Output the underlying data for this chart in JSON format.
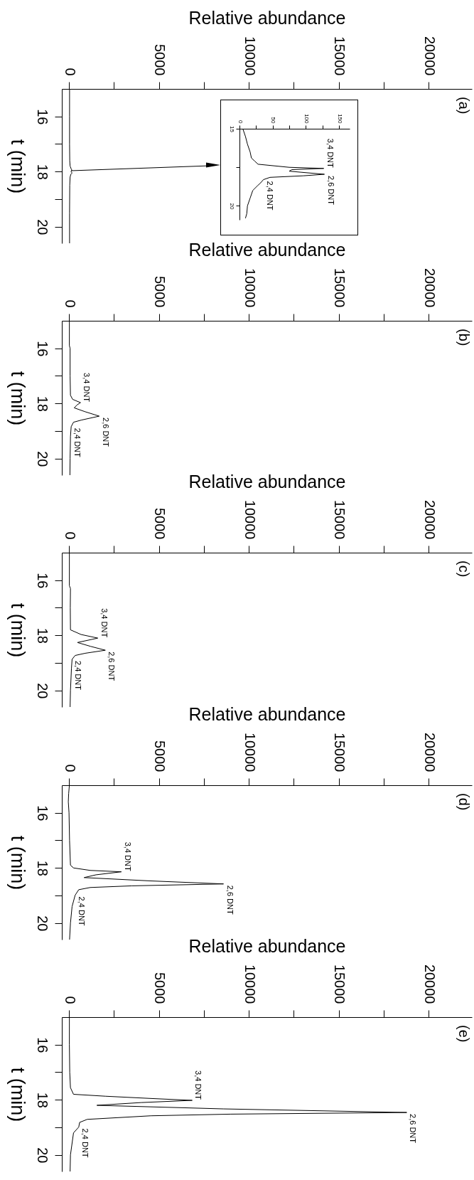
{
  "chart_data": [
    {
      "type": "line",
      "title": "(a)",
      "xlabel": "Relative abundance",
      "ylabel": "t (min)",
      "xlim": [
        -400,
        22400
      ],
      "ylim": [
        20.6,
        15
      ],
      "xticks": [
        0,
        {
          "value": 2500,
          "label": null
        },
        5000,
        {
          "value": 7500,
          "label": null
        },
        10000,
        {
          "value": 12500,
          "label": null
        },
        15000,
        {
          "value": 17500,
          "label": null
        },
        20000
      ],
      "yticks": [
        16,
        {
          "value": 17,
          "label": null
        },
        18,
        {
          "value": 19,
          "label": null
        },
        20
      ],
      "series": [
        {
          "color": "#000000",
          "x": [
            30,
            30,
            30,
            40,
            60,
            120,
            160,
            110,
            170,
            100,
            60,
            40,
            30,
            30
          ],
          "values": [
            15.0,
            16.0,
            17.0,
            17.6,
            17.8,
            17.9,
            17.95,
            18.0,
            18.05,
            18.1,
            18.2,
            18.5,
            19.5,
            20.6
          ]
        }
      ]
    },
    {
      "type": "line",
      "xlim": [
        0,
        166
      ],
      "ylim": [
        20.9,
        15
      ],
      "xticks": [
        0,
        {
          "value": 25,
          "label": null
        },
        50,
        {
          "value": 75,
          "label": null
        },
        100,
        {
          "value": 125,
          "label": null
        },
        150
      ],
      "yticks": [
        15,
        {
          "value": 17.5,
          "label": null
        },
        20
      ],
      "series": [
        {
          "color": "#000000",
          "x": [
            5,
            9,
            12,
            16,
            18,
            23,
            28,
            75,
            127,
            79,
            75,
            93,
            128,
            96,
            46,
            36,
            32,
            27,
            20,
            16,
            12,
            11,
            9
          ],
          "values": [
            15.0,
            15.5,
            16.0,
            16.5,
            16.9,
            17.1,
            17.3,
            17.5,
            17.57,
            17.65,
            17.75,
            17.82,
            17.95,
            18.05,
            18.15,
            18.3,
            18.5,
            18.7,
            19.0,
            19.5,
            20.0,
            20.5,
            20.8
          ]
        }
      ],
      "annotations": [
        {
          "text": "3,4 DNT",
          "x": 127,
          "y": 17.57
        },
        {
          "text": "2,6 DNT",
          "x": 128,
          "y": 17.95
        },
        {
          "text": "2,4 DNT",
          "x": 36,
          "y": 18.3
        }
      ]
    },
    {
      "type": "line",
      "title": "(b)",
      "xlabel": "Relative abundance",
      "ylabel": "t (min)",
      "xlim": [
        -400,
        22400
      ],
      "ylim": [
        20.6,
        15
      ],
      "xticks": [
        0,
        {
          "value": 2500,
          "label": null
        },
        5000,
        {
          "value": 7500,
          "label": null
        },
        10000,
        {
          "value": 12500,
          "label": null
        },
        15000,
        {
          "value": 17500,
          "label": null
        },
        20000
      ],
      "yticks": [
        16,
        {
          "value": 17,
          "label": null
        },
        18,
        {
          "value": 19,
          "label": null
        },
        20
      ],
      "series": [
        {
          "color": "#000000",
          "x": [
            20,
            20,
            60,
            60,
            80,
            200,
            640,
            450,
            290,
            900,
            1680,
            700,
            250,
            120,
            80,
            60,
            50
          ],
          "values": [
            15.0,
            15.9,
            16.0,
            17.0,
            17.7,
            17.85,
            17.97,
            18.05,
            18.16,
            18.3,
            18.46,
            18.6,
            18.68,
            18.84,
            19.2,
            20.0,
            20.6
          ]
        }
      ],
      "annotations": [
        {
          "text": "3,4 DNT",
          "x": 640,
          "y": 17.97
        },
        {
          "text": "2,6 DNT",
          "x": 1680,
          "y": 18.46
        },
        {
          "text": "2,4 DNT",
          "x": 120,
          "y": 18.84
        }
      ]
    },
    {
      "type": "line",
      "title": "(c)",
      "xlabel": "Relative abundance",
      "ylabel": "t (min)",
      "xlim": [
        -400,
        22400
      ],
      "ylim": [
        20.6,
        15
      ],
      "xticks": [
        0,
        {
          "value": 2500,
          "label": null
        },
        5000,
        {
          "value": 7500,
          "label": null
        },
        10000,
        {
          "value": 12500,
          "label": null
        },
        15000,
        {
          "value": 17500,
          "label": null
        },
        20000
      ],
      "yticks": [
        16,
        {
          "value": 17,
          "label": null
        },
        18,
        {
          "value": 19,
          "label": null
        },
        20
      ],
      "series": [
        {
          "color": "#000000",
          "x": [
            20,
            20,
            80,
            70,
            80,
            670,
            1600,
            470,
            1200,
            2020,
            900,
            340,
            170,
            135,
            80,
            60
          ],
          "values": [
            15.0,
            16.2,
            16.3,
            17.0,
            17.8,
            17.97,
            18.1,
            18.26,
            18.4,
            18.54,
            18.65,
            18.73,
            18.87,
            19.2,
            20.0,
            20.6
          ]
        }
      ],
      "annotations": [
        {
          "text": "3,4 DNT",
          "x": 1600,
          "y": 18.1
        },
        {
          "text": "2,6 DNT",
          "x": 2020,
          "y": 18.54
        },
        {
          "text": "2,4 DNT",
          "x": 170,
          "y": 18.87
        }
      ]
    },
    {
      "type": "line",
      "title": "(d)",
      "xlabel": "Relative abundance",
      "ylabel": "t (min)",
      "xlim": [
        -400,
        22400
      ],
      "ylim": [
        20.6,
        15
      ],
      "xticks": [
        0,
        {
          "value": 2500,
          "label": null
        },
        5000,
        {
          "value": 7500,
          "label": null
        },
        10000,
        {
          "value": 12500,
          "label": null
        },
        15000,
        {
          "value": 17500,
          "label": null
        },
        20000
      ],
      "yticks": [
        16,
        {
          "value": 17,
          "label": null
        },
        18,
        {
          "value": 19,
          "label": null
        },
        20
      ],
      "series": [
        {
          "color": "#000000",
          "x": [
            20,
            -20,
            -40,
            0,
            30,
            80,
            250,
            1180,
            2910,
            1500,
            840,
            4500,
            8590,
            3500,
            1180,
            540,
            340,
            170,
            80,
            30
          ],
          "values": [
            15.0,
            15.3,
            15.6,
            16.0,
            17.0,
            17.9,
            18.0,
            18.09,
            18.14,
            18.25,
            18.35,
            18.47,
            18.58,
            18.65,
            18.71,
            18.79,
            18.99,
            19.4,
            20.0,
            20.6
          ]
        }
      ],
      "annotations": [
        {
          "text": "3,4 DNT",
          "x": 2910,
          "y": 18.14
        },
        {
          "text": "2,6 DNT",
          "x": 8590,
          "y": 18.58
        },
        {
          "text": "2,4 DNT",
          "x": 340,
          "y": 18.99
        }
      ]
    },
    {
      "type": "line",
      "title": "(e)",
      "xlabel": "Relative abundance",
      "ylabel": "t (min)",
      "xlim": [
        -400,
        22400
      ],
      "ylim": [
        20.6,
        15
      ],
      "xticks": [
        0,
        {
          "value": 2500,
          "label": null
        },
        5000,
        {
          "value": 7500,
          "label": null
        },
        10000,
        {
          "value": 12500,
          "label": null
        },
        15000,
        {
          "value": 17500,
          "label": null
        },
        20000
      ],
      "yticks": [
        16,
        {
          "value": 17,
          "label": null
        },
        18,
        {
          "value": 19,
          "label": null
        },
        20
      ],
      "series": [
        {
          "color": "#000000",
          "x": [
            20,
            20,
            40,
            80,
            250,
            2020,
            4500,
            6850,
            4000,
            1550,
            8600,
            18780,
            9000,
            4550,
            1010,
            590,
            540,
            250,
            80,
            60
          ],
          "values": [
            15.0,
            16.0,
            17.0,
            17.56,
            17.8,
            17.87,
            17.95,
            18.02,
            18.1,
            18.2,
            18.33,
            18.46,
            18.52,
            18.58,
            18.71,
            18.82,
            18.99,
            19.2,
            20.0,
            20.6
          ]
        }
      ],
      "annotations": [
        {
          "text": "3,4 DNT",
          "x": 6850,
          "y": 18.02
        },
        {
          "text": "2,6 DNT",
          "x": 18780,
          "y": 18.46
        },
        {
          "text": "2,4 DNT",
          "x": 540,
          "y": 18.99
        }
      ]
    }
  ]
}
